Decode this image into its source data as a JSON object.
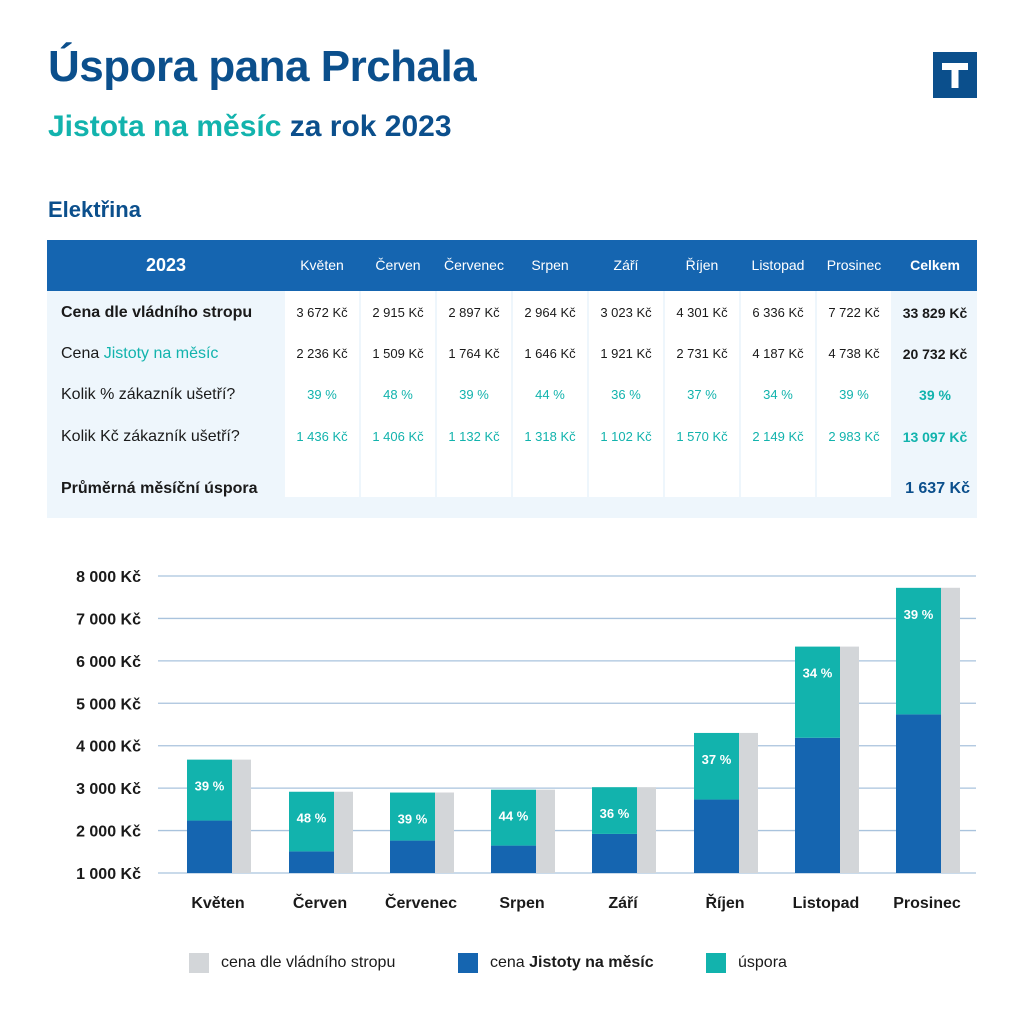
{
  "header": {
    "title": "Úspora pana Prchala",
    "subtitle_accent": "Jistota na měsíc",
    "subtitle_rest": " za rok 2023",
    "logo_letter": "T"
  },
  "section_title": "Elektřina",
  "table": {
    "year_label": "2023",
    "months": [
      "Květen",
      "Červen",
      "Červenec",
      "Srpen",
      "Září",
      "Říjen",
      "Listopad",
      "Prosinec"
    ],
    "total_label": "Celkem",
    "rows": [
      {
        "label": "Cena dle vládního stropu",
        "values": [
          "3 672 Kč",
          "2 915 Kč",
          "2 897 Kč",
          "2 964 Kč",
          "3 023 Kč",
          "4 301 Kč",
          "6 336 Kč",
          "7 722 Kč"
        ],
        "total": "33 829 Kč"
      },
      {
        "label_prefix": "Cena ",
        "label_accent": "Jistoty na měsíc",
        "values": [
          "2 236 Kč",
          "1 509 Kč",
          "1 764 Kč",
          "1 646 Kč",
          "1 921 Kč",
          "2 731 Kč",
          "4 187 Kč",
          "4 738 Kč"
        ],
        "total": "20 732 Kč"
      },
      {
        "label": "Kolik % zákazník ušetří?",
        "values": [
          "39 %",
          "48 %",
          "39 %",
          "44 %",
          "36 %",
          "37 %",
          "34 %",
          "39 %"
        ],
        "total": "39 %"
      },
      {
        "label": "Kolik Kč zákazník ušetří?",
        "values": [
          "1 436 Kč",
          "1 406 Kč",
          "1 132 Kč",
          "1 318 Kč",
          "1 102 Kč",
          "1 570 Kč",
          "2 149 Kč",
          "2 983 Kč"
        ],
        "total": "13 097  Kč"
      }
    ],
    "average_label": "Průměrná měsíční úspora",
    "average_value": "1 637 Kč"
  },
  "chart_data": {
    "type": "bar",
    "categories": [
      "Květen",
      "Červen",
      "Červenec",
      "Srpen",
      "Září",
      "Říjen",
      "Listopad",
      "Prosinec"
    ],
    "series": [
      {
        "name": "cena dle vládního stropu",
        "values": [
          3672,
          2915,
          2897,
          2964,
          3023,
          4301,
          6336,
          7722
        ]
      },
      {
        "name": "cena Jistoty na měsíc",
        "values": [
          2236,
          1509,
          1764,
          1646,
          1921,
          2731,
          4187,
          4738
        ]
      },
      {
        "name": "úspora",
        "values": [
          1436,
          1406,
          1132,
          1318,
          1102,
          1570,
          2149,
          2983
        ]
      }
    ],
    "savings_pct_labels": [
      "39 %",
      "48 %",
      "39 %",
      "44 %",
      "36 %",
      "37 %",
      "34 %",
      "39 %"
    ],
    "y_ticks": [
      1000,
      2000,
      3000,
      4000,
      5000,
      6000,
      7000,
      8000
    ],
    "y_tick_labels": [
      "1 000 Kč",
      "2 000 Kč",
      "3 000 Kč",
      "4 000 Kč",
      "5 000 Kč",
      "6 000 Kč",
      "7 000 Kč",
      "8 000 Kč"
    ],
    "ylim": [
      1000,
      8000
    ],
    "grid": true,
    "legend_position": "bottom",
    "colors": {
      "cap": "#d3d6d9",
      "jistota": "#1565b0",
      "saving": "#12b3ad"
    }
  },
  "legend": {
    "cap_label": "cena dle vládního stropu",
    "jistota_prefix": "cena ",
    "jistota_bold": "Jistoty na měsíc",
    "saving_label": "úspora"
  }
}
